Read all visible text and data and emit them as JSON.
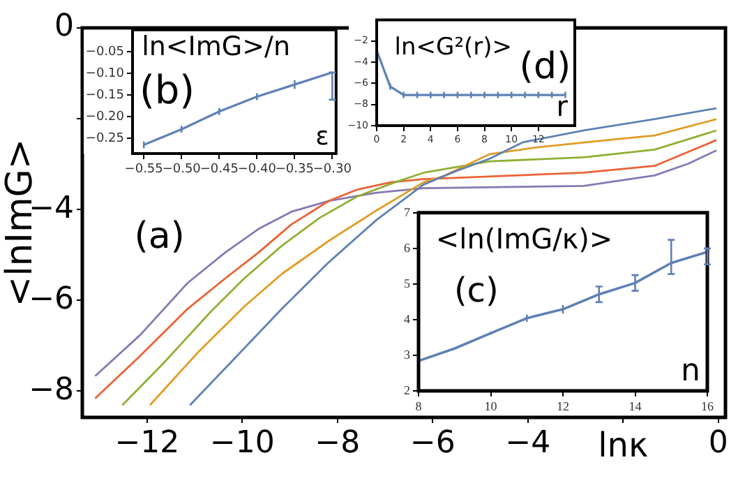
{
  "chart_data": [
    {
      "type": "line",
      "xlabel": "lnκ",
      "ylabel": "<lnImG>",
      "annotations": [
        "(a)"
      ],
      "marker": "none",
      "xlim": [
        -13.36,
        0.15
      ],
      "ylim": [
        -8.58,
        0
      ],
      "xticks": [
        {
          "value": -12,
          "label": "−12"
        },
        {
          "value": -10,
          "label": "−10"
        },
        {
          "value": -8,
          "label": "−8"
        },
        {
          "value": -6,
          "label": "−6"
        },
        {
          "value": -4,
          "label": "−4"
        },
        {
          "value": -2,
          "label": null
        },
        0
      ],
      "yticks": [
        {
          "value": -8,
          "label": "−8"
        },
        {
          "value": -6,
          "label": "−6"
        },
        {
          "value": -4,
          "label": "−4"
        },
        {
          "value": -2,
          "label": null
        },
        0
      ],
      "series": [
        {
          "color": "#5e81b5",
          "x": [
            -11.1,
            -10.16,
            -9.17,
            -8.18,
            -7.18,
            -6.19,
            -5.5,
            -4.8,
            -4.11,
            -2.83,
            -1.34,
            -0.04
          ],
          "values": [
            -8.31,
            -7.28,
            -6.19,
            -5.16,
            -4.23,
            -3.45,
            -3.15,
            -2.88,
            -2.52,
            -2.26,
            -2.01,
            -1.77
          ]
        },
        {
          "color": "#e19c24",
          "x": [
            -11.94,
            -10.95,
            -9.96,
            -9.17,
            -8.18,
            -7.18,
            -6.19,
            -5.79,
            -4.8,
            -3.81,
            -2.32,
            -1.34,
            -0.04
          ],
          "values": [
            -8.31,
            -7.17,
            -6.14,
            -5.42,
            -4.69,
            -4.02,
            -3.4,
            -3.27,
            -2.78,
            -2.63,
            -2.47,
            -2.37,
            -2.01
          ]
        },
        {
          "color": "#8fb032",
          "x": [
            -12.52,
            -11.65,
            -10.65,
            -9.96,
            -9.17,
            -8.37,
            -7.58,
            -6.79,
            -6.19,
            -4.8,
            -2.83,
            -1.34,
            -0.04
          ],
          "values": [
            -8.31,
            -7.38,
            -6.24,
            -5.52,
            -4.8,
            -4.18,
            -3.71,
            -3.4,
            -3.19,
            -2.94,
            -2.85,
            -2.68,
            -2.26
          ]
        },
        {
          "color": "#eb6235",
          "x": [
            -13.09,
            -12.14,
            -11.15,
            -10.36,
            -9.66,
            -8.97,
            -8.18,
            -7.58,
            -6.88,
            -6.19,
            -2.83,
            -1.34,
            -0.04
          ],
          "values": [
            -8.16,
            -7.22,
            -6.19,
            -5.52,
            -4.95,
            -4.33,
            -3.81,
            -3.56,
            -3.4,
            -3.33,
            -3.19,
            -3.04,
            -2.47
          ]
        },
        {
          "color": "#8778b3",
          "x": [
            -13.09,
            -12.14,
            -11.15,
            -10.36,
            -9.66,
            -8.97,
            -8.18,
            -7.18,
            -6.19,
            -2.83,
            -1.34,
            -0.63,
            -0.04
          ],
          "values": [
            -7.67,
            -6.76,
            -5.62,
            -4.95,
            -4.43,
            -4.05,
            -3.81,
            -3.63,
            -3.53,
            -3.48,
            -3.25,
            -2.99,
            -2.7
          ]
        }
      ]
    },
    {
      "type": "line",
      "title": "ln<ImG>/n",
      "xlabel": "ε",
      "annotations": [
        "(b)"
      ],
      "marker": "none",
      "x": [
        -0.55,
        -0.5,
        -0.45,
        -0.4,
        -0.35,
        -0.3
      ],
      "xlim": [
        -0.565,
        -0.295
      ],
      "ylim": [
        -0.285,
        0
      ],
      "xticks": [
        {
          "value": -0.55,
          "label": "−0.55"
        },
        {
          "value": -0.5,
          "label": "−0.50"
        },
        {
          "value": -0.45,
          "label": "−0.45"
        },
        {
          "value": -0.4,
          "label": "−0.40"
        },
        {
          "value": -0.35,
          "label": "−0.35"
        },
        {
          "value": -0.3,
          "label": "−0.30"
        }
      ],
      "yticks": [
        {
          "value": -0.05,
          "label": "−0.05"
        },
        {
          "value": -0.1,
          "label": "−0.10"
        },
        {
          "value": -0.15,
          "label": "−0.15"
        },
        {
          "value": -0.2,
          "label": "−0.20"
        },
        {
          "value": -0.25,
          "label": "−0.25"
        }
      ],
      "series": [
        {
          "color": "#5e81b5",
          "values": [
            -0.265,
            -0.229,
            -0.188,
            -0.154,
            -0.126,
            -0.098
          ],
          "errors": [
            0.008,
            0.008,
            0.008,
            0.008,
            0.01,
            [
              -0.161,
              -0.098
            ]
          ]
        }
      ]
    },
    {
      "type": "line",
      "title": "ln<G²(r)>",
      "xlabel": "r",
      "annotations": [
        "(d)"
      ],
      "marker": "none",
      "x": [
        0,
        1,
        2,
        3,
        4,
        5,
        6,
        7,
        8,
        9,
        10,
        11,
        12,
        13,
        14
      ],
      "xlim": [
        0,
        14.7
      ],
      "ylim": [
        -10,
        0
      ],
      "xticks": [
        0,
        2,
        4,
        6,
        8,
        10,
        12
      ],
      "yticks": [
        {
          "value": -2,
          "label": "−2"
        },
        {
          "value": -4,
          "label": "−4"
        },
        {
          "value": -6,
          "label": "−6"
        },
        {
          "value": -8,
          "label": "−8"
        },
        {
          "value": -10,
          "label": "−10"
        }
      ],
      "series": [
        {
          "color": "#5e81b5",
          "values": [
            -2.9,
            -6.3,
            -7.1,
            -7.1,
            -7.1,
            -7.1,
            -7.1,
            -7.1,
            -7.1,
            -7.1,
            -7.1,
            -7.1,
            -7.1,
            -7.1,
            -7.1
          ],
          "errors": [
            null,
            0.3,
            0.3,
            0.3,
            0.3,
            0.3,
            0.3,
            0.3,
            0.3,
            0.3,
            0.3,
            0.3,
            0.3,
            0.3,
            0.3
          ]
        }
      ]
    },
    {
      "type": "line",
      "title": "<ln(ImG/κ)>",
      "xlabel": "n",
      "annotations": [
        "(c)"
      ],
      "marker": "none",
      "x": [
        8,
        9,
        10,
        11,
        12,
        13,
        14,
        15,
        16
      ],
      "xlim": [
        8,
        16
      ],
      "ylim": [
        2,
        7
      ],
      "xticks": [
        8,
        10,
        12,
        14,
        16
      ],
      "yticks": [
        2,
        3,
        4,
        5,
        6,
        7
      ],
      "series": [
        {
          "color": "#5e81b5",
          "values": [
            2.84,
            3.19,
            3.62,
            4.04,
            4.29,
            4.71,
            5.03,
            5.59,
            5.9
          ],
          "errors": [
            null,
            null,
            0.04,
            0.1,
            0.12,
            0.22,
            0.22,
            [
              5.28,
              6.24
            ],
            [
              5.55,
              6.0
            ]
          ]
        }
      ]
    }
  ]
}
